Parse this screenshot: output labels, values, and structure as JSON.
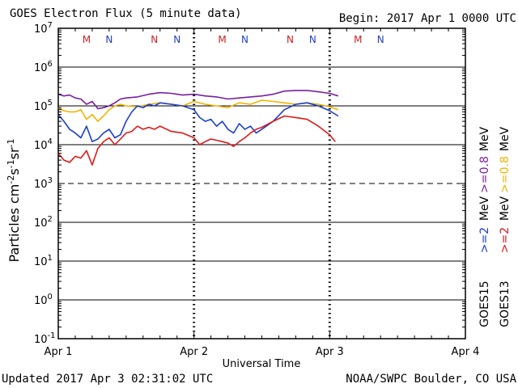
{
  "header": {
    "title": "GOES Electron Flux (5 minute data)",
    "begin": "Begin: 2017 Apr 1 0000 UTC"
  },
  "footer": {
    "updated": "Updated 2017 Apr  3 02:31:02 UTC",
    "source": "NOAA/SWPC Boulder, CO USA"
  },
  "colors": {
    "g15_ge08": "#7a1fa0",
    "g13_ge08": "#f0b400",
    "g15_ge2": "#1a3fd0",
    "g13_ge2": "#e01818",
    "marker_m": "#cc2020",
    "marker_n": "#2040c0"
  },
  "chart_data": {
    "type": "line",
    "xlabel": "Universal Time",
    "ylabel_parts": [
      "Particles cm",
      "-2",
      "s",
      "-1",
      "sr",
      "-1"
    ],
    "y_scale": "log",
    "ylim": [
      0.1,
      10000000
    ],
    "xlim": [
      0,
      72
    ],
    "x_unit": "hours since 2017 Apr 1 0000 UTC",
    "x_ticks": [
      {
        "x": 0,
        "label": "Apr 1"
      },
      {
        "x": 24,
        "label": "Apr 2"
      },
      {
        "x": 48,
        "label": "Apr 3"
      },
      {
        "x": 72,
        "label": "Apr 4"
      }
    ],
    "y_ticks": [
      {
        "exp": "-1"
      },
      {
        "exp": "0"
      },
      {
        "exp": "1"
      },
      {
        "exp": "2"
      },
      {
        "exp": "3"
      },
      {
        "exp": "4"
      },
      {
        "exp": "5"
      },
      {
        "exp": "6"
      },
      {
        "exp": "7"
      }
    ],
    "threshold_line": 1000,
    "legend": [
      {
        "sat": "GOES15",
        "ge08": ">=0.8",
        "ge2": ">=2",
        "unit": "MeV"
      },
      {
        "sat": "GOES13",
        "ge08": ">=0.8",
        "ge2": ">=2",
        "unit": "MeV"
      }
    ],
    "markers": [
      {
        "x": 5,
        "label": "M",
        "color_key": "marker_m"
      },
      {
        "x": 9,
        "label": "N",
        "color_key": "marker_n"
      },
      {
        "x": 17,
        "label": "N",
        "color_key": "marker_m"
      },
      {
        "x": 21,
        "label": "N",
        "color_key": "marker_n"
      },
      {
        "x": 29,
        "label": "M",
        "color_key": "marker_m"
      },
      {
        "x": 33,
        "label": "N",
        "color_key": "marker_n"
      },
      {
        "x": 41,
        "label": "N",
        "color_key": "marker_m"
      },
      {
        "x": 45,
        "label": "N",
        "color_key": "marker_n"
      },
      {
        "x": 53,
        "label": "M",
        "color_key": "marker_m"
      },
      {
        "x": 57,
        "label": "N",
        "color_key": "marker_n"
      }
    ],
    "series": [
      {
        "name": "GOES15 >=0.8 MeV",
        "color_key": "g15_ge08",
        "x": [
          0,
          1,
          2,
          3,
          4,
          5,
          6,
          7,
          8,
          9,
          10,
          11,
          12,
          14,
          16,
          18,
          20,
          22,
          24,
          26,
          28,
          30,
          32,
          34,
          36,
          38,
          40,
          42,
          44,
          46,
          48,
          49.5
        ],
        "y": [
          200000,
          180000,
          190000,
          160000,
          150000,
          110000,
          130000,
          85000,
          90000,
          100000,
          120000,
          150000,
          160000,
          170000,
          200000,
          220000,
          210000,
          190000,
          200000,
          180000,
          170000,
          150000,
          160000,
          170000,
          180000,
          200000,
          240000,
          250000,
          250000,
          230000,
          210000,
          180000
        ]
      },
      {
        "name": "GOES13 >=0.8 MeV",
        "color_key": "g13_ge08",
        "x": [
          0,
          1,
          2,
          3,
          4,
          5,
          6,
          7,
          8,
          9,
          10,
          11,
          12,
          14,
          16,
          18,
          20,
          22,
          24,
          26,
          28,
          30,
          32,
          34,
          36,
          38,
          40,
          42,
          44,
          46,
          48,
          49.5
        ],
        "y": [
          90000,
          75000,
          70000,
          70000,
          80000,
          45000,
          60000,
          40000,
          55000,
          80000,
          100000,
          110000,
          100000,
          95000,
          110000,
          120000,
          110000,
          100000,
          130000,
          110000,
          100000,
          90000,
          120000,
          110000,
          140000,
          130000,
          120000,
          110000,
          120000,
          110000,
          95000,
          80000
        ]
      },
      {
        "name": "GOES15 >=2 MeV",
        "color_key": "g15_ge2",
        "x": [
          0,
          1,
          2,
          3,
          4,
          5,
          6,
          7,
          8,
          9,
          10,
          11,
          12,
          13,
          14,
          15,
          16,
          17,
          18,
          20,
          22,
          24,
          25,
          26,
          27,
          28,
          29,
          30,
          31,
          32,
          33,
          34,
          35,
          36,
          38,
          40,
          42,
          44,
          46,
          48,
          49.5
        ],
        "y": [
          60000,
          40000,
          25000,
          20000,
          15000,
          30000,
          12000,
          14000,
          20000,
          25000,
          15000,
          18000,
          40000,
          70000,
          100000,
          90000,
          110000,
          100000,
          120000,
          110000,
          100000,
          80000,
          50000,
          40000,
          45000,
          30000,
          40000,
          25000,
          20000,
          35000,
          25000,
          30000,
          20000,
          25000,
          40000,
          80000,
          110000,
          120000,
          100000,
          75000,
          55000
        ]
      },
      {
        "name": "GOES13 >=2 MeV",
        "color_key": "g13_ge2",
        "x": [
          0,
          1,
          2,
          3,
          4,
          5,
          6,
          7,
          8,
          9,
          10,
          11,
          12,
          13,
          14,
          15,
          16,
          17,
          18,
          20,
          22,
          24,
          25,
          26,
          27,
          28,
          29,
          30,
          31,
          32,
          33,
          34,
          35,
          36,
          38,
          40,
          42,
          44,
          46,
          48,
          49
        ],
        "y": [
          6000,
          4000,
          3500,
          5000,
          4500,
          7000,
          3000,
          8000,
          12000,
          15000,
          10000,
          14000,
          20000,
          22000,
          30000,
          25000,
          28000,
          25000,
          30000,
          22000,
          20000,
          15000,
          10000,
          12000,
          14000,
          13000,
          12000,
          11000,
          9000,
          12000,
          15000,
          20000,
          25000,
          28000,
          40000,
          55000,
          50000,
          45000,
          30000,
          18000,
          12000
        ]
      }
    ]
  }
}
